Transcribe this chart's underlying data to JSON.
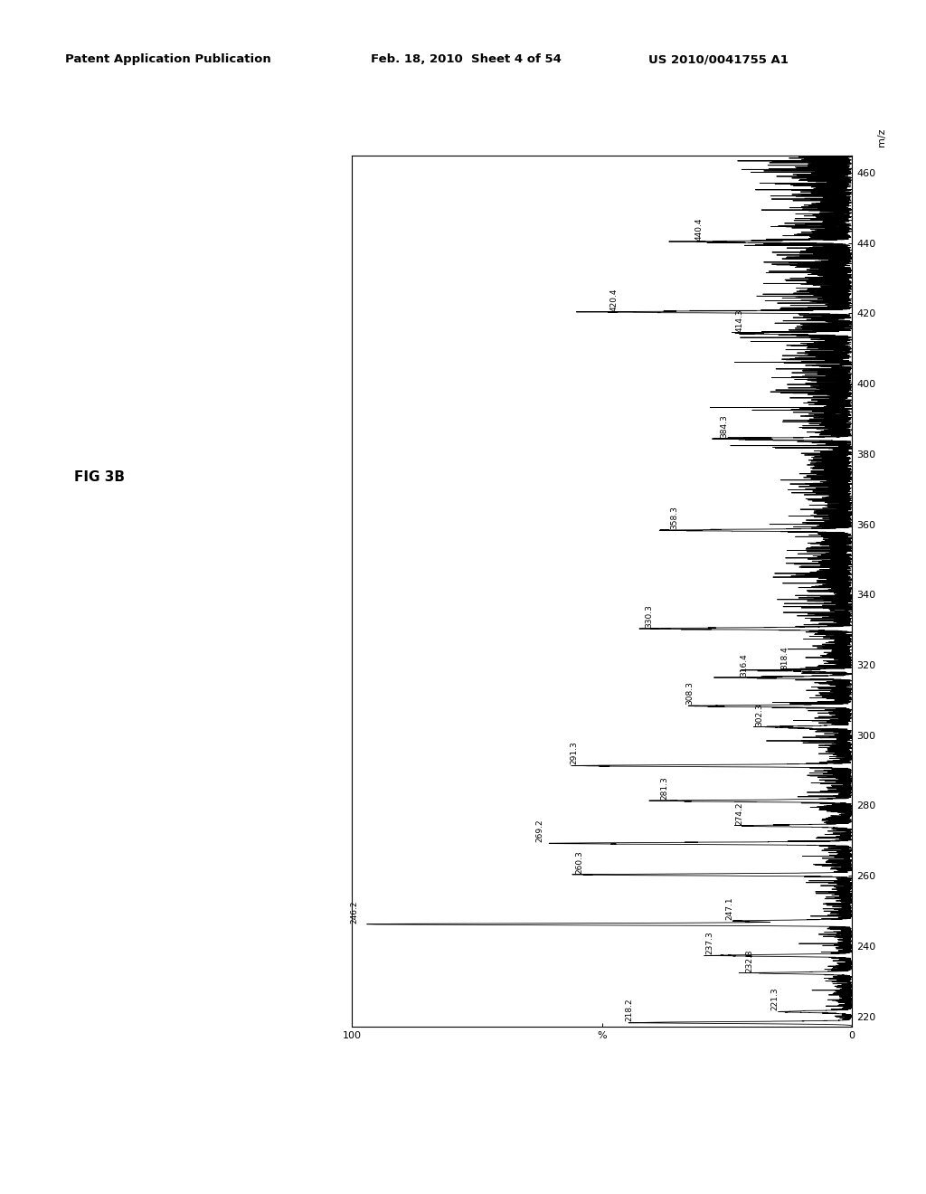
{
  "header_left": "Patent Application Publication",
  "header_mid": "Feb. 18, 2010  Sheet 4 of 54",
  "header_right": "US 2010/0041755 A1",
  "fig_label": "FIG 3B",
  "xlabel": "m/z",
  "ylabel": "%",
  "mz_min": 217,
  "mz_max": 465,
  "pct_min": 0,
  "pct_max": 100,
  "mz_ticks": [
    220,
    240,
    260,
    280,
    300,
    320,
    340,
    360,
    380,
    400,
    420,
    440,
    460
  ],
  "peaks": [
    {
      "mz": 218.2,
      "intensity": 42,
      "label": "218.2"
    },
    {
      "mz": 221.3,
      "intensity": 13,
      "label": "221.3"
    },
    {
      "mz": 232.3,
      "intensity": 18,
      "label": "232.3"
    },
    {
      "mz": 237.3,
      "intensity": 26,
      "label": "237.3"
    },
    {
      "mz": 246.2,
      "intensity": 97,
      "label": "246.2"
    },
    {
      "mz": 247.1,
      "intensity": 22,
      "label": "247.1"
    },
    {
      "mz": 260.3,
      "intensity": 52,
      "label": "260.3"
    },
    {
      "mz": 269.2,
      "intensity": 60,
      "label": "269.2"
    },
    {
      "mz": 274.2,
      "intensity": 20,
      "label": "274.2"
    },
    {
      "mz": 281.3,
      "intensity": 35,
      "label": "281.3"
    },
    {
      "mz": 291.3,
      "intensity": 53,
      "label": "291.3"
    },
    {
      "mz": 302.3,
      "intensity": 16,
      "label": "302.3"
    },
    {
      "mz": 308.3,
      "intensity": 30,
      "label": "308.3"
    },
    {
      "mz": 316.4,
      "intensity": 19,
      "label": "316.4"
    },
    {
      "mz": 318.4,
      "intensity": 11,
      "label": "318.4"
    },
    {
      "mz": 330.3,
      "intensity": 38,
      "label": "330.3"
    },
    {
      "mz": 358.3,
      "intensity": 33,
      "label": "358.3"
    },
    {
      "mz": 384.3,
      "intensity": 23,
      "label": "384.3"
    },
    {
      "mz": 414.3,
      "intensity": 20,
      "label": "414.3"
    },
    {
      "mz": 420.4,
      "intensity": 45,
      "label": "420.4"
    },
    {
      "mz": 440.4,
      "intensity": 28,
      "label": "440.4"
    }
  ]
}
